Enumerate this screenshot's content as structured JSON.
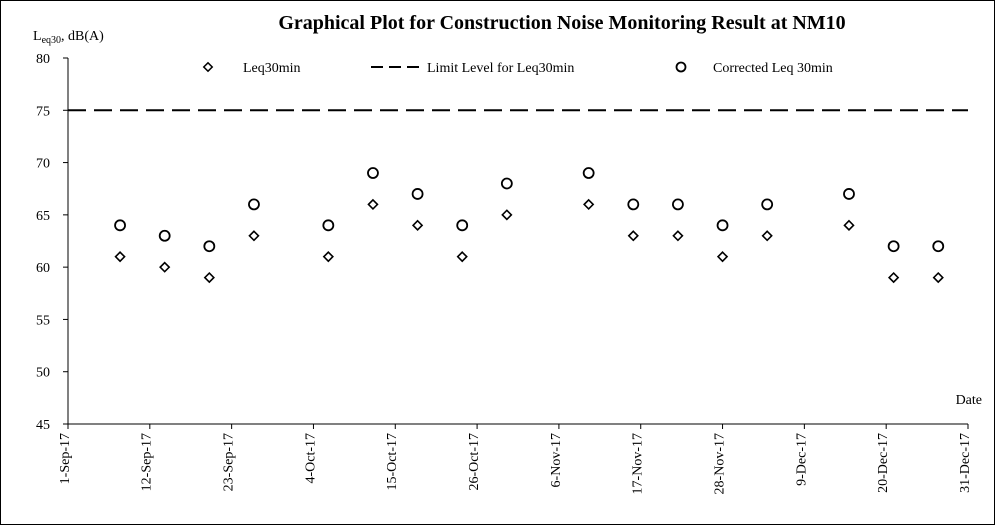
{
  "chart_data": {
    "type": "scatter",
    "title": "Graphical Plot for Construction Noise Monitoring Result at NM10",
    "ylabel_main": "L",
    "ylabel_sub": "eq30",
    "ylabel_suffix": ", dB(A)",
    "xlabel": "Date",
    "ylim": [
      45,
      80
    ],
    "yticks": [
      45,
      50,
      55,
      60,
      65,
      70,
      75,
      80
    ],
    "xlim": [
      "2017-09-01",
      "2017-12-31"
    ],
    "xticks": [
      {
        "date": "2017-09-01",
        "label": "1-Sep-17"
      },
      {
        "date": "2017-09-12",
        "label": "12-Sep-17"
      },
      {
        "date": "2017-09-23",
        "label": "23-Sep-17"
      },
      {
        "date": "2017-10-04",
        "label": "4-Oct-17"
      },
      {
        "date": "2017-10-15",
        "label": "15-Oct-17"
      },
      {
        "date": "2017-10-26",
        "label": "26-Oct-17"
      },
      {
        "date": "2017-11-06",
        "label": "6-Nov-17"
      },
      {
        "date": "2017-11-17",
        "label": "17-Nov-17"
      },
      {
        "date": "2017-11-28",
        "label": "28-Nov-17"
      },
      {
        "date": "2017-12-09",
        "label": "9-Dec-17"
      },
      {
        "date": "2017-12-20",
        "label": "20-Dec-17"
      },
      {
        "date": "2017-12-31",
        "label": "31-Dec-17"
      }
    ],
    "grid": false,
    "legend_position": "top",
    "limit_line": {
      "name": "Limit Level for Leq30min",
      "value": 75,
      "color": "#000000"
    },
    "series": [
      {
        "name": "Leq30min",
        "marker": "diamond",
        "color": "#000000",
        "points": [
          {
            "x": "2017-09-08",
            "y": 61
          },
          {
            "x": "2017-09-14",
            "y": 60
          },
          {
            "x": "2017-09-20",
            "y": 59
          },
          {
            "x": "2017-09-26",
            "y": 63
          },
          {
            "x": "2017-10-06",
            "y": 61
          },
          {
            "x": "2017-10-12",
            "y": 66
          },
          {
            "x": "2017-10-18",
            "y": 64
          },
          {
            "x": "2017-10-24",
            "y": 61
          },
          {
            "x": "2017-10-30",
            "y": 65
          },
          {
            "x": "2017-11-10",
            "y": 66
          },
          {
            "x": "2017-11-16",
            "y": 63
          },
          {
            "x": "2017-11-22",
            "y": 63
          },
          {
            "x": "2017-11-28",
            "y": 61
          },
          {
            "x": "2017-12-04",
            "y": 63
          },
          {
            "x": "2017-12-15",
            "y": 64
          },
          {
            "x": "2017-12-21",
            "y": 59
          },
          {
            "x": "2017-12-27",
            "y": 59
          }
        ]
      },
      {
        "name": "Corrected Leq 30min",
        "marker": "circle",
        "color": "#000000",
        "points": [
          {
            "x": "2017-09-08",
            "y": 64
          },
          {
            "x": "2017-09-14",
            "y": 63
          },
          {
            "x": "2017-09-20",
            "y": 62
          },
          {
            "x": "2017-09-26",
            "y": 66
          },
          {
            "x": "2017-10-06",
            "y": 64
          },
          {
            "x": "2017-10-12",
            "y": 69
          },
          {
            "x": "2017-10-18",
            "y": 67
          },
          {
            "x": "2017-10-24",
            "y": 64
          },
          {
            "x": "2017-10-30",
            "y": 68
          },
          {
            "x": "2017-11-10",
            "y": 69
          },
          {
            "x": "2017-11-16",
            "y": 66
          },
          {
            "x": "2017-11-22",
            "y": 66
          },
          {
            "x": "2017-11-28",
            "y": 64
          },
          {
            "x": "2017-12-04",
            "y": 66
          },
          {
            "x": "2017-12-15",
            "y": 67
          },
          {
            "x": "2017-12-21",
            "y": 62
          },
          {
            "x": "2017-12-27",
            "y": 62
          }
        ]
      }
    ]
  }
}
